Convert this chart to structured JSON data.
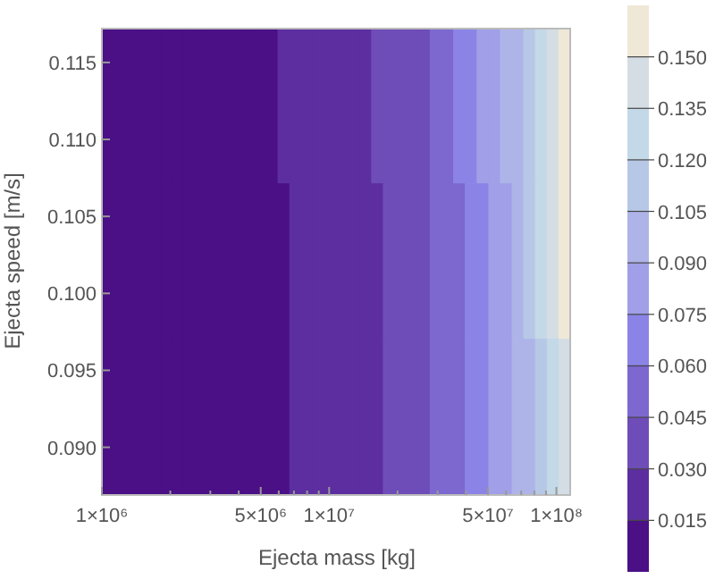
{
  "chart_data": {
    "type": "heatmap",
    "xlabel": "Ejecta mass [kg]",
    "ylabel": "Ejecta speed [m/s]",
    "log": "x",
    "xlim": [
      1000000,
      115000000
    ],
    "xticks": [
      {
        "value": 1000000,
        "label": "1×10⁶"
      },
      {
        "value": 2000000,
        "label": null
      },
      {
        "value": 3000000,
        "label": null
      },
      {
        "value": 4000000,
        "label": null
      },
      {
        "value": 5000000,
        "label": "5×10⁶"
      },
      {
        "value": 6000000,
        "label": null
      },
      {
        "value": 7000000,
        "label": null
      },
      {
        "value": 8000000,
        "label": null
      },
      {
        "value": 9000000,
        "label": null
      },
      {
        "value": 10000000,
        "label": "1×10⁷"
      },
      {
        "value": 20000000,
        "label": null
      },
      {
        "value": 30000000,
        "label": null
      },
      {
        "value": 40000000,
        "label": null
      },
      {
        "value": 50000000,
        "label": "5×10⁷"
      },
      {
        "value": 60000000,
        "label": null
      },
      {
        "value": 70000000,
        "label": null
      },
      {
        "value": 80000000,
        "label": null
      },
      {
        "value": 90000000,
        "label": null
      },
      {
        "value": 100000000,
        "label": "1×10⁸"
      }
    ],
    "ylim": [
      0.0869,
      0.1172
    ],
    "yticks": [
      {
        "value": 0.09,
        "label": "0.090"
      },
      0.095,
      {
        "value": 0.1,
        "label": "0.100"
      },
      0.105,
      {
        "value": 0.11,
        "label": "0.110"
      },
      0.115
    ],
    "x": [
      1061000,
      1195000,
      1345000,
      1515000,
      1705000,
      1920000,
      2162000,
      2434000,
      2741000,
      3086000,
      3475000,
      3913000,
      4406000,
      4961000,
      5585000,
      6289000,
      7081000,
      7973000,
      8977000,
      10110000,
      11380000,
      12810000,
      14430000,
      16240000,
      18290000,
      20600000,
      23190000,
      26110000,
      29400000,
      33110000,
      37270000,
      41970000,
      47250000,
      53210000,
      59910000,
      67450000,
      75950000,
      85510000,
      96270000,
      108400000
    ],
    "y": [
      0.1122,
      0.1021,
      0.092
    ],
    "cells": [
      [
        0.0075,
        0.0075,
        0.0075,
        0.0075,
        0.0075,
        0.0075,
        0.0075,
        0.0075,
        0.0075,
        0.0075,
        0.0075,
        0.0075,
        0.0075,
        0.0075,
        0.0075,
        0.0225,
        0.0225,
        0.0225,
        0.0225,
        0.0225,
        0.0225,
        0.0225,
        0.0225,
        0.0375,
        0.0375,
        0.0375,
        0.0375,
        0.0375,
        0.0525,
        0.0525,
        0.0675,
        0.0675,
        0.0825,
        0.0825,
        0.0975,
        0.0975,
        0.1125,
        0.1275,
        0.1425,
        0.1575
      ],
      [
        0.0075,
        0.0075,
        0.0075,
        0.0075,
        0.0075,
        0.0075,
        0.0075,
        0.0075,
        0.0075,
        0.0075,
        0.0075,
        0.0075,
        0.0075,
        0.0075,
        0.0075,
        0.0075,
        0.0225,
        0.0225,
        0.0225,
        0.0225,
        0.0225,
        0.0225,
        0.0225,
        0.0225,
        0.0375,
        0.0375,
        0.0375,
        0.0375,
        0.0525,
        0.0525,
        0.0525,
        0.0675,
        0.0675,
        0.0825,
        0.0825,
        0.0975,
        0.1125,
        0.1275,
        0.1425,
        0.1575
      ],
      [
        0.0075,
        0.0075,
        0.0075,
        0.0075,
        0.0075,
        0.0075,
        0.0075,
        0.0075,
        0.0075,
        0.0075,
        0.0075,
        0.0075,
        0.0075,
        0.0075,
        0.0075,
        0.0075,
        0.0225,
        0.0225,
        0.0225,
        0.0225,
        0.0225,
        0.0225,
        0.0225,
        0.0225,
        0.0375,
        0.0375,
        0.0375,
        0.0375,
        0.0525,
        0.0525,
        0.0525,
        0.0675,
        0.0675,
        0.0825,
        0.0825,
        0.0975,
        0.0975,
        0.1125,
        0.1275,
        0.1425
      ]
    ],
    "clim": [
      0,
      0.165
    ],
    "cticks": [
      0.015,
      {
        "value": 0.03,
        "label": "0.030"
      },
      0.045,
      {
        "value": 0.06,
        "label": "0.060"
      },
      0.075,
      {
        "value": 0.09,
        "label": "0.090"
      },
      0.105,
      {
        "value": 0.12,
        "label": "0.120"
      },
      0.135,
      {
        "value": 0.15,
        "label": "0.150"
      }
    ]
  }
}
